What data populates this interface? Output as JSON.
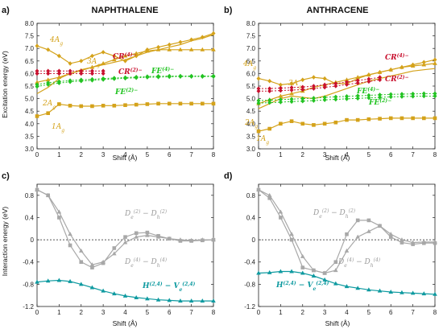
{
  "colors": {
    "gold": "#d4a21a",
    "red": "#c8102e",
    "green": "#22c322",
    "grey": "#a8a8a8",
    "teal": "#0e9aa0",
    "axis": "#222222",
    "zero": "#555555"
  },
  "xlabel": "Shift (Å)",
  "chart_data": [
    {
      "id": "a",
      "type": "line",
      "panel_label": "a)",
      "title": "NAPHTHALENE",
      "ylabel": "Excitation energy (eV)",
      "xlim": [
        0,
        8
      ],
      "ylim": [
        3.0,
        8.0
      ],
      "xticks": [
        0,
        1,
        2,
        3,
        4,
        5,
        6,
        7,
        8
      ],
      "yticks": [
        3.0,
        3.5,
        4.0,
        4.5,
        5.0,
        5.5,
        6.0,
        6.5,
        7.0,
        7.5,
        8.0
      ],
      "series": [
        {
          "name": "1Ag",
          "color": "gold",
          "marker": "square",
          "x": [
            0,
            0.5,
            1,
            1.5,
            2,
            2.5,
            3,
            3.5,
            4,
            4.5,
            5,
            5.5,
            6,
            6.5,
            7,
            7.5,
            8
          ],
          "y": [
            4.3,
            4.42,
            4.78,
            4.72,
            4.7,
            4.7,
            4.72,
            4.72,
            4.74,
            4.76,
            4.78,
            4.8,
            4.8,
            4.8,
            4.8,
            4.8,
            4.8
          ]
        },
        {
          "name": "2Ag",
          "color": "gold",
          "marker": "none",
          "x": [
            0,
            0.5,
            1,
            1.5,
            2,
            2.5,
            3,
            3.5,
            4,
            4.5,
            5,
            5.5,
            6,
            6.5,
            7,
            7.5,
            8
          ],
          "y": [
            5.2,
            5.45,
            5.8,
            6.0,
            6.15,
            6.25,
            6.35,
            6.45,
            6.55,
            6.7,
            6.85,
            6.95,
            7.05,
            7.15,
            7.3,
            7.4,
            7.55
          ]
        },
        {
          "name": "3Ag",
          "color": "gold",
          "marker": "triangle",
          "x": [
            0,
            0.5,
            1,
            1.5,
            2,
            2.5,
            3,
            3.5,
            4,
            4.5,
            5,
            5.5,
            6,
            6.5,
            7,
            7.5,
            8
          ],
          "y": [
            5.65,
            5.75,
            5.85,
            6.0,
            6.12,
            6.25,
            6.4,
            6.55,
            6.7,
            6.8,
            6.9,
            6.95,
            6.95,
            6.95,
            6.95,
            6.95,
            6.95
          ]
        },
        {
          "name": "4Ag",
          "color": "gold",
          "marker": "diamond",
          "x": [
            0,
            0.5,
            1,
            1.5,
            2,
            2.5,
            3,
            3.5,
            4,
            4.5,
            5,
            5.5,
            6,
            6.5,
            7,
            7.5,
            8
          ],
          "y": [
            7.1,
            6.95,
            6.7,
            6.4,
            6.5,
            6.7,
            6.85,
            6.7,
            6.5,
            6.7,
            6.95,
            7.05,
            7.15,
            7.25,
            7.35,
            7.45,
            7.6
          ]
        },
        {
          "name": "CR(4)-",
          "color": "red",
          "marker": "diamond",
          "dashed": true,
          "x": [
            0,
            0.5,
            1,
            1.5,
            2,
            2.5,
            3
          ],
          "y": [
            6.1,
            6.1,
            6.1,
            6.1,
            6.1,
            6.1,
            6.1
          ]
        },
        {
          "name": "CR(2)-",
          "color": "red",
          "marker": "diamond",
          "dashed": true,
          "x": [
            0,
            0.5,
            1,
            1.5,
            2,
            2.5,
            3
          ],
          "y": [
            6.0,
            6.0,
            6.0,
            6.0,
            6.0,
            6.0,
            6.0
          ]
        },
        {
          "name": "FE(4)-",
          "color": "green",
          "marker": "diamond",
          "dashed": true,
          "x": [
            0,
            0.5,
            1,
            1.5,
            2,
            2.5,
            3,
            3.5,
            4,
            4.5,
            5,
            5.5,
            6,
            6.5,
            7,
            7.5,
            8
          ],
          "y": [
            5.56,
            5.63,
            5.68,
            5.72,
            5.75,
            5.77,
            5.8,
            5.82,
            5.84,
            5.86,
            5.88,
            5.89,
            5.9,
            5.9,
            5.9,
            5.9,
            5.9
          ]
        },
        {
          "name": "FE(2)-",
          "color": "green",
          "marker": "diamond",
          "dashed": true,
          "x": [
            0,
            0.5,
            1,
            1.5,
            2,
            2.5,
            3,
            3.5,
            4,
            4.5,
            5,
            5.5,
            6,
            6.5,
            7,
            7.5,
            8
          ],
          "y": [
            5.48,
            5.56,
            5.62,
            5.67,
            5.7,
            5.73,
            5.76,
            5.79,
            5.81,
            5.83,
            5.85,
            5.86,
            5.87,
            5.88,
            5.88,
            5.88,
            5.88
          ]
        }
      ]
    },
    {
      "id": "b",
      "type": "line",
      "panel_label": "b)",
      "title": "ANTHRACENE",
      "ylabel": "",
      "xlim": [
        0,
        8
      ],
      "ylim": [
        3.0,
        8.0
      ],
      "xticks": [
        0,
        1,
        2,
        3,
        4,
        5,
        6,
        7,
        8
      ],
      "yticks": [
        3.0,
        3.5,
        4.0,
        4.5,
        5.0,
        5.5,
        6.0,
        6.5,
        7.0,
        7.5,
        8.0
      ],
      "series": [
        {
          "name": "1Ag",
          "color": "gold",
          "marker": "square",
          "x": [
            0,
            0.5,
            1,
            1.5,
            2,
            2.5,
            3,
            3.5,
            4,
            4.5,
            5,
            5.5,
            6,
            6.5,
            7,
            7.5,
            8
          ],
          "y": [
            3.7,
            3.8,
            4.0,
            4.1,
            4.0,
            3.95,
            4.0,
            4.05,
            4.15,
            4.15,
            4.18,
            4.2,
            4.22,
            4.22,
            4.22,
            4.22,
            4.22
          ]
        },
        {
          "name": "2Ag",
          "color": "gold",
          "marker": "none",
          "x": [
            0,
            0.5,
            1,
            1.5,
            2,
            2.5,
            3,
            3.5,
            4,
            4.5,
            5,
            5.5,
            6,
            6.5,
            7,
            7.5,
            8
          ],
          "y": [
            4.6,
            4.8,
            5.0,
            5.1,
            5.05,
            5.0,
            5.1,
            5.25,
            5.4,
            5.55,
            5.7,
            5.8,
            5.9,
            6.0,
            6.1,
            6.15,
            6.2
          ]
        },
        {
          "name": "3Ag",
          "color": "gold",
          "marker": "triangle",
          "x": [
            0,
            0.5,
            1,
            1.5,
            2,
            2.5,
            3,
            3.5,
            4,
            4.5,
            5,
            5.5,
            6,
            6.5,
            7,
            7.5,
            8
          ],
          "y": [
            4.8,
            4.95,
            5.1,
            5.2,
            5.3,
            5.45,
            5.55,
            5.65,
            5.75,
            5.85,
            5.95,
            6.05,
            6.15,
            6.25,
            6.3,
            6.35,
            6.4
          ]
        },
        {
          "name": "4Ag",
          "color": "gold",
          "marker": "diamond",
          "x": [
            0,
            0.5,
            1,
            1.5,
            2,
            2.5,
            3,
            3.5,
            4,
            4.5,
            5,
            5.5,
            6,
            6.5,
            7,
            7.5,
            8
          ],
          "y": [
            5.8,
            5.7,
            5.55,
            5.6,
            5.75,
            5.85,
            5.8,
            5.6,
            5.6,
            5.8,
            5.95,
            6.05,
            6.15,
            6.25,
            6.35,
            6.45,
            6.55
          ]
        },
        {
          "name": "CR(4)-",
          "color": "red",
          "marker": "diamond",
          "dashed": true,
          "x": [
            0,
            0.5,
            1,
            1.5,
            2,
            2.5,
            3,
            3.5,
            4,
            4.5,
            5,
            5.5
          ],
          "y": [
            5.4,
            5.4,
            5.42,
            5.44,
            5.46,
            5.5,
            5.55,
            5.6,
            5.66,
            5.72,
            5.78,
            5.85
          ]
        },
        {
          "name": "CR(2)-",
          "color": "red",
          "marker": "diamond",
          "dashed": true,
          "x": [
            0,
            0.5,
            1,
            1.5,
            2,
            2.5,
            3,
            3.5,
            4,
            4.5,
            5,
            5.5
          ],
          "y": [
            5.3,
            5.3,
            5.32,
            5.34,
            5.36,
            5.4,
            5.45,
            5.5,
            5.56,
            5.62,
            5.68,
            5.75
          ]
        },
        {
          "name": "FE(4)-",
          "color": "green",
          "marker": "diamond",
          "dashed": true,
          "x": [
            0,
            0.5,
            1,
            1.5,
            2,
            2.5,
            3,
            3.5,
            4,
            4.5,
            5,
            5.5,
            6,
            6.5,
            7,
            7.5,
            8
          ],
          "y": [
            4.92,
            4.94,
            4.96,
            4.98,
            5.0,
            5.02,
            5.05,
            5.07,
            5.09,
            5.11,
            5.13,
            5.15,
            5.17,
            5.18,
            5.19,
            5.2,
            5.2
          ]
        },
        {
          "name": "FE(2)-",
          "color": "green",
          "marker": "diamond",
          "dashed": true,
          "x": [
            0,
            0.5,
            1,
            1.5,
            2,
            2.5,
            3,
            3.5,
            4,
            4.5,
            5,
            5.5,
            6,
            6.5,
            7,
            7.5,
            8
          ],
          "y": [
            4.82,
            4.84,
            4.86,
            4.88,
            4.9,
            4.92,
            4.95,
            4.97,
            4.99,
            5.01,
            5.03,
            5.05,
            5.07,
            5.08,
            5.09,
            5.1,
            5.1
          ]
        }
      ]
    },
    {
      "id": "c",
      "type": "line",
      "panel_label": "c)",
      "title": "",
      "ylabel": "Interaction energy (eV)",
      "xlim": [
        0,
        8
      ],
      "ylim": [
        -1.2,
        1.0
      ],
      "xticks": [
        0,
        1,
        2,
        3,
        4,
        5,
        6,
        7,
        8
      ],
      "yticks": [
        -1.2,
        -0.8,
        -0.4,
        0,
        0.4,
        0.8
      ],
      "series": [
        {
          "name": "De(2)-Dh(2)",
          "color": "grey",
          "marker": "square",
          "x": [
            0,
            0.5,
            1,
            1.5,
            2,
            2.5,
            3,
            3.5,
            4,
            4.5,
            5,
            5.5,
            6,
            6.5,
            7,
            7.5,
            8
          ],
          "y": [
            0.9,
            0.8,
            0.4,
            -0.1,
            -0.4,
            -0.5,
            -0.42,
            -0.15,
            0.05,
            0.12,
            0.13,
            0.07,
            0.02,
            -0.02,
            -0.02,
            -0.01,
            0.0
          ]
        },
        {
          "name": "De(4)-Dh(4)",
          "color": "grey",
          "marker": "triangle",
          "x": [
            0,
            0.5,
            1,
            1.5,
            2,
            2.5,
            3,
            3.5,
            4,
            4.5,
            5,
            5.5,
            6,
            6.5,
            7,
            7.5,
            8
          ],
          "y": [
            0.9,
            0.8,
            0.5,
            0.1,
            -0.2,
            -0.45,
            -0.4,
            -0.25,
            -0.05,
            0.05,
            0.08,
            0.05,
            0.02,
            0.0,
            -0.01,
            0.0,
            0.0
          ]
        },
        {
          "name": "H(2,4)-Ve(2,4)",
          "color": "teal",
          "marker": "triangle",
          "x": [
            0,
            0.5,
            1,
            1.5,
            2,
            2.5,
            3,
            3.5,
            4,
            4.5,
            5,
            5.5,
            6,
            6.5,
            7,
            7.5,
            8
          ],
          "y": [
            -0.76,
            -0.74,
            -0.73,
            -0.75,
            -0.8,
            -0.86,
            -0.92,
            -0.97,
            -1.01,
            -1.04,
            -1.06,
            -1.08,
            -1.09,
            -1.1,
            -1.1,
            -1.1,
            -1.1
          ]
        }
      ]
    },
    {
      "id": "d",
      "type": "line",
      "panel_label": "d)",
      "title": "",
      "ylabel": "",
      "xlim": [
        0,
        8
      ],
      "ylim": [
        -1.2,
        1.0
      ],
      "xticks": [
        0,
        1,
        2,
        3,
        4,
        5,
        6,
        7,
        8
      ],
      "yticks": [
        -1.2,
        -0.8,
        -0.4,
        0,
        0.4,
        0.8
      ],
      "series": [
        {
          "name": "De(2)-Dh(2)",
          "color": "grey",
          "marker": "square",
          "x": [
            0,
            0.5,
            1,
            1.5,
            2,
            2.5,
            3,
            3.5,
            4,
            4.5,
            5,
            5.5,
            6,
            6.5,
            7,
            7.5,
            8
          ],
          "y": [
            0.9,
            0.75,
            0.4,
            0.0,
            -0.5,
            -0.55,
            -0.6,
            -0.4,
            0.1,
            0.35,
            0.35,
            0.25,
            0.05,
            -0.05,
            -0.08,
            -0.06,
            -0.06
          ]
        },
        {
          "name": "De(4)-Dh(4)",
          "color": "grey",
          "marker": "triangle",
          "x": [
            0,
            0.5,
            1,
            1.5,
            2,
            2.5,
            3,
            3.5,
            4,
            4.5,
            5,
            5.5,
            6,
            6.5,
            7,
            7.5,
            8
          ],
          "y": [
            0.9,
            0.8,
            0.5,
            0.1,
            -0.3,
            -0.55,
            -0.6,
            -0.55,
            -0.2,
            0.05,
            0.15,
            0.25,
            0.1,
            0.0,
            -0.05,
            -0.04,
            -0.04
          ]
        },
        {
          "name": "H(2,4)-Ve(2,4)",
          "color": "teal",
          "marker": "triangle",
          "x": [
            0,
            0.5,
            1,
            1.5,
            2,
            2.5,
            3,
            3.5,
            4,
            4.5,
            5,
            5.5,
            6,
            6.5,
            7,
            7.5,
            8
          ],
          "y": [
            -0.6,
            -0.59,
            -0.57,
            -0.57,
            -0.6,
            -0.65,
            -0.72,
            -0.79,
            -0.84,
            -0.87,
            -0.9,
            -0.92,
            -0.94,
            -0.95,
            -0.96,
            -0.97,
            -0.98
          ]
        }
      ]
    }
  ],
  "annotations": {
    "a": {
      "4Ag": {
        "b": "4A",
        "s": "g"
      },
      "3Ag": {
        "b": "3A",
        "s": "g"
      },
      "2Ag": {
        "b": "2A",
        "s": "g"
      },
      "1Ag": {
        "b": "1A",
        "s": "g"
      },
      "CR4": {
        "b": "CR",
        "p": "(4)−"
      },
      "CR2": {
        "b": "CR",
        "p": "(2)−"
      },
      "FE4": {
        "b": "FE",
        "p": "(4)−"
      },
      "FE2": {
        "b": "FE",
        "p": "(2)−"
      }
    },
    "b": {
      "4Ag": {
        "b": "4A",
        "s": "g"
      },
      "3Ag": {
        "b": "3A",
        "s": "g"
      },
      "2Ag": {
        "b": "2A",
        "s": "g"
      },
      "1Ag": {
        "b": "1A",
        "s": "g"
      },
      "CR4": {
        "b": "CR",
        "p": "(4)−"
      },
      "CR2": {
        "b": "CR",
        "p": "(2)−"
      },
      "FE4": {
        "b": "FE",
        "p": "(4)−"
      },
      "FE2": {
        "b": "FE",
        "p": "(2)−"
      }
    },
    "c": {
      "D2a": {
        "b": "D",
        "s": "e",
        "p": "(2)"
      },
      "D2m": {
        "b": " − D",
        "s": "h",
        "p": "(2)"
      },
      "D4a": {
        "b": "D",
        "s": "e",
        "p": "(4)"
      },
      "D4m": {
        "b": " − D",
        "s": "h",
        "p": "(4)"
      },
      "Ha": {
        "b": "H",
        "p": "(2,4)"
      },
      "Hm": {
        "b": " − V",
        "s": "e",
        "p": "(2,4)"
      }
    },
    "d": {
      "D2a": {
        "b": "D",
        "s": "e",
        "p": "(2)"
      },
      "D2m": {
        "b": " − D",
        "s": "h",
        "p": "(2)"
      },
      "D4a": {
        "b": "D",
        "s": "e",
        "p": "(4)"
      },
      "D4m": {
        "b": " − D",
        "s": "h",
        "p": "(4)"
      },
      "Ha": {
        "b": "H",
        "p": "(2,4)"
      },
      "Hm": {
        "b": " − V",
        "s": "e",
        "p": "(2,4)"
      }
    }
  }
}
